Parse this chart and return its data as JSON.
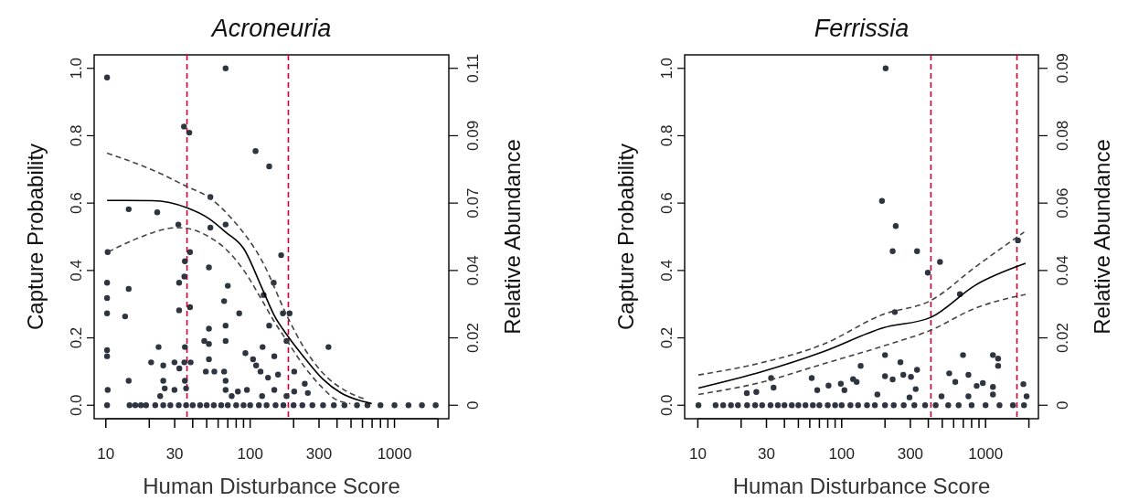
{
  "chart_data": [
    {
      "type": "scatter",
      "title": "Acroneuria",
      "xlabel": "Human Disturbance Score",
      "ylabel": "Capture Probability",
      "y2label": "Relative Abundance",
      "log": "x",
      "xlim": [
        8.3,
        2380
      ],
      "xticks": [
        10,
        {
          "value": 20,
          "label": null
        },
        30,
        {
          "value": 40,
          "label": null
        },
        {
          "value": 50,
          "label": null
        },
        {
          "value": 60,
          "label": null
        },
        {
          "value": 70,
          "label": null
        },
        {
          "value": 80,
          "label": null
        },
        {
          "value": 90,
          "label": null
        },
        100,
        {
          "value": 200,
          "label": null
        },
        300,
        {
          "value": 400,
          "label": null
        },
        {
          "value": 500,
          "label": null
        },
        {
          "value": 600,
          "label": null
        },
        {
          "value": 700,
          "label": null
        },
        {
          "value": 800,
          "label": null
        },
        {
          "value": 900,
          "label": null
        },
        1000,
        {
          "value": 2000,
          "label": null
        }
      ],
      "ylim": [
        -0.04,
        1.04
      ],
      "yticks": [
        {
          "value": 0,
          "label": "0.0"
        },
        {
          "value": 0.2,
          "label": "0.2"
        },
        {
          "value": 0.4,
          "label": "0.4"
        },
        {
          "value": 0.6,
          "label": "0.6"
        },
        {
          "value": 0.8,
          "label": "0.8"
        },
        {
          "value": 1,
          "label": "1.0"
        }
      ],
      "y2lim": [
        -0.0044,
        0.1144
      ],
      "y2ticks": [
        {
          "value": 0,
          "label": "0"
        },
        {
          "value": 0.022,
          "label": "0.02"
        },
        {
          "value": 0.044,
          "label": "0.04"
        },
        {
          "value": 0.066,
          "label": "0.07"
        },
        {
          "value": 0.088,
          "label": "0.09"
        },
        {
          "value": 0.11,
          "label": "0.11"
        }
      ],
      "ref_lines": [
        {
          "axis": "x",
          "value": 36.5,
          "color": "#cc0033",
          "line_style": "dashed"
        },
        {
          "axis": "x",
          "value": 184,
          "color": "#cc0033",
          "line_style": "dashed"
        }
      ],
      "series": [
        {
          "type": "scatter",
          "axis": "y2",
          "marker": "circle",
          "color": "#2e3440",
          "x": [
            10.2,
            67.6,
            34.8,
            37.9,
            109,
            135.5,
            53,
            14.4,
            22.7,
            31.8,
            67.6,
            53,
            164,
            10.3,
            38.3,
            35.3,
            51.8,
            35,
            32.2,
            10.2,
            14.4,
            145.6,
            70,
            10.2,
            66,
            124,
            10.2,
            13.6,
            32.2,
            38.3,
            84,
            168.6,
            187.6,
            51.8,
            67.6,
            135.5,
            48.1,
            67.6,
            23.2,
            35.3,
            10.2,
            10.2,
            51.8,
            122,
            178.6,
            349,
            92.7,
            147,
            51.8,
            20.6,
            25,
            29.9,
            35,
            38.7,
            104.7,
            110,
            32.3,
            49.3,
            56.5,
            66,
            118,
            156,
            202,
            25,
            35.3,
            67.6,
            133,
            239,
            251,
            10.3,
            14.4,
            25.6,
            29.9,
            36,
            67.6,
            82.2,
            95,
            147,
            202,
            23.8,
            74.5,
            121,
            178.6,
            10.2,
            14.6,
            16,
            17.5,
            19,
            22,
            25,
            28,
            32,
            36,
            40,
            45,
            50,
            56,
            63,
            70,
            80,
            90,
            100,
            115,
            130,
            150,
            170,
            200,
            230,
            270,
            320,
            380,
            450,
            550,
            650,
            800,
            1000,
            1250,
            1550,
            1930
          ],
          "values": [
            0.107,
            0.11,
            0.091,
            0.089,
            0.083,
            0.078,
            0.068,
            0.064,
            0.063,
            0.059,
            0.059,
            0.058,
            0.049,
            0.05,
            0.05,
            0.047,
            0.045,
            0.042,
            0.04,
            0.04,
            0.038,
            0.04,
            0.039,
            0.035,
            0.034,
            0.036,
            0.03,
            0.029,
            0.031,
            0.032,
            0.03,
            0.03,
            0.03,
            0.025,
            0.026,
            0.026,
            0.021,
            0.021,
            0.019,
            0.019,
            0.018,
            0.016,
            0.02,
            0.019,
            0.021,
            0.019,
            0.017,
            0.016,
            0.015,
            0.014,
            0.013,
            0.014,
            0.014,
            0.014,
            0.015,
            0.013,
            0.012,
            0.011,
            0.011,
            0.011,
            0.011,
            0.01,
            0.011,
            0.008,
            0.008,
            0.008,
            0.009,
            0.007,
            0.004,
            0.005,
            0.008,
            0.0055,
            0.005,
            0.0055,
            0.005,
            0.0045,
            0.005,
            0.005,
            0.0045,
            0.003,
            0.003,
            0.003,
            0.003,
            0,
            0,
            0,
            0,
            0,
            0,
            0,
            0,
            0,
            0,
            0,
            0,
            0,
            0,
            0,
            0,
            0,
            0,
            0,
            0,
            0,
            0,
            0,
            0,
            0,
            0,
            0,
            0,
            0,
            0,
            0,
            0,
            0,
            0,
            0,
            0
          ]
        },
        {
          "type": "line",
          "line_style": "solid",
          "color": "#000000",
          "x": [
            10.2,
            21.1,
            36.5,
            51.8,
            67.6,
            90.5,
            121,
            147,
            184,
            239,
            320,
            428,
            573,
            697
          ],
          "values": [
            0.608,
            0.607,
            0.586,
            0.554,
            0.514,
            0.464,
            0.347,
            0.266,
            0.203,
            0.14,
            0.077,
            0.036,
            0.014,
            0.005
          ]
        },
        {
          "type": "line",
          "line_style": "dashed",
          "color": "#444444",
          "x": [
            10.2,
            21.1,
            36.5,
            51.8,
            74.5,
            121,
            184,
            239,
            320,
            472,
            631
          ],
          "values": [
            0.748,
            0.698,
            0.649,
            0.617,
            0.554,
            0.428,
            0.257,
            0.167,
            0.095,
            0.04,
            0.018
          ]
        },
        {
          "type": "line",
          "line_style": "dashed",
          "color": "#444444",
          "x": [
            10.4,
            16.5,
            31.1,
            36.5,
            51.8,
            67.6,
            90.5,
            121,
            147,
            184,
            239,
            320,
            389,
            495
          ],
          "values": [
            0.455,
            0.495,
            0.527,
            0.525,
            0.5,
            0.464,
            0.4,
            0.311,
            0.248,
            0.185,
            0.113,
            0.05,
            0.018,
            0.005
          ]
        }
      ]
    },
    {
      "type": "scatter",
      "title": "Ferrissia",
      "xlabel": "Human Disturbance Score",
      "ylabel": "Capture Probability",
      "y2label": "Relative Abundance",
      "log": "x",
      "xlim": [
        8.1,
        2330
      ],
      "xticks": [
        10,
        {
          "value": 20,
          "label": null
        },
        30,
        {
          "value": 40,
          "label": null
        },
        {
          "value": 50,
          "label": null
        },
        {
          "value": 60,
          "label": null
        },
        {
          "value": 70,
          "label": null
        },
        {
          "value": 80,
          "label": null
        },
        {
          "value": 90,
          "label": null
        },
        100,
        {
          "value": 200,
          "label": null
        },
        300,
        {
          "value": 400,
          "label": null
        },
        {
          "value": 500,
          "label": null
        },
        {
          "value": 600,
          "label": null
        },
        {
          "value": 700,
          "label": null
        },
        {
          "value": 800,
          "label": null
        },
        {
          "value": 900,
          "label": null
        },
        1000,
        {
          "value": 2000,
          "label": null
        }
      ],
      "ylim": [
        -0.04,
        1.04
      ],
      "yticks": [
        {
          "value": 0,
          "label": "0.0"
        },
        {
          "value": 0.2,
          "label": "0.2"
        },
        {
          "value": 0.4,
          "label": "0.4"
        },
        {
          "value": 0.6,
          "label": "0.6"
        },
        {
          "value": 0.8,
          "label": "0.8"
        },
        {
          "value": 1,
          "label": "1.0"
        }
      ],
      "y2lim": [
        -0.00376,
        0.09776
      ],
      "y2ticks": [
        {
          "value": 0,
          "label": "0"
        },
        {
          "value": 0.0188,
          "label": "0.02"
        },
        {
          "value": 0.0376,
          "label": "0.04"
        },
        {
          "value": 0.0564,
          "label": "0.06"
        },
        {
          "value": 0.0752,
          "label": "0.08"
        },
        {
          "value": 0.094,
          "label": "0.09"
        }
      ],
      "ref_lines": [
        {
          "axis": "x",
          "value": 417,
          "color": "#cc0033",
          "line_style": "dashed"
        },
        {
          "axis": "x",
          "value": 1652,
          "color": "#cc0033",
          "line_style": "dashed"
        }
      ],
      "series": [
        {
          "type": "scatter",
          "axis": "y2",
          "marker": "circle",
          "color": "#2e3440",
          "x": [
            202,
            190.5,
            237.5,
            226,
            334,
            397,
            482,
            234,
            663,
            1679,
            200,
            256,
            135.5,
            697,
            1125,
            1222,
            1222,
            127,
            98.6,
            120,
            61.9,
            32.3,
            33.6,
            25.5,
            21.9,
            67.6,
            81,
            104.5,
            226,
            200,
            268,
            303,
            334,
            327,
            559,
            616,
            760,
            760,
            867,
            957,
            1125,
            1125,
            1832,
            1928,
            494,
            177,
            296,
            10.1,
            13.3,
            15,
            17,
            19,
            22,
            25,
            28,
            32,
            36,
            40,
            45,
            50,
            56,
            63,
            70,
            80,
            90,
            100,
            115,
            130,
            150,
            170,
            200,
            230,
            270,
            320,
            380,
            450,
            550,
            650,
            800,
            1000,
            1250,
            1550,
            1850
          ],
          "values": [
            0.094,
            0.057,
            0.05,
            0.043,
            0.043,
            0.037,
            0.04,
            0.026,
            0.031,
            0.046,
            0.014,
            0.012,
            0.011,
            0.014,
            0.014,
            0.011,
            0.013,
            0.0065,
            0.006,
            0.0073,
            0.0076,
            0.0076,
            0.0049,
            0.0037,
            0.0034,
            0.0042,
            0.0055,
            0.0042,
            0.0072,
            0.0081,
            0.0085,
            0.0079,
            0.0099,
            0.0045,
            0.0089,
            0.0065,
            0.0085,
            0.0025,
            0.0054,
            0.0062,
            0.0051,
            0.003,
            0.0059,
            0.0025,
            0.0025,
            0.003,
            0.0022,
            0,
            0,
            0,
            0,
            0,
            0,
            0,
            0,
            0,
            0,
            0,
            0,
            0,
            0,
            0,
            0,
            0,
            0,
            0,
            0,
            0,
            0,
            0,
            0,
            0,
            0,
            0,
            0,
            0,
            0,
            0,
            0,
            0,
            0,
            0,
            0
          ]
        },
        {
          "type": "line",
          "line_style": "solid",
          "color": "#000000",
          "x": [
            10.1,
            27.6,
            73.5,
            195,
            417,
            847,
            1897
          ],
          "values": [
            0.051,
            0.099,
            0.158,
            0.23,
            0.261,
            0.356,
            0.421
          ]
        },
        {
          "type": "line",
          "line_style": "dashed",
          "color": "#444444",
          "x": [
            10.1,
            27.6,
            73.5,
            195,
            417,
            847,
            1854
          ],
          "values": [
            0.09,
            0.126,
            0.18,
            0.27,
            0.311,
            0.41,
            0.514
          ]
        },
        {
          "type": "line",
          "line_style": "dashed",
          "color": "#444444",
          "x": [
            10.1,
            27.6,
            73.5,
            195,
            417,
            847,
            1897
          ],
          "values": [
            0.032,
            0.068,
            0.122,
            0.176,
            0.223,
            0.288,
            0.329
          ]
        }
      ]
    }
  ]
}
